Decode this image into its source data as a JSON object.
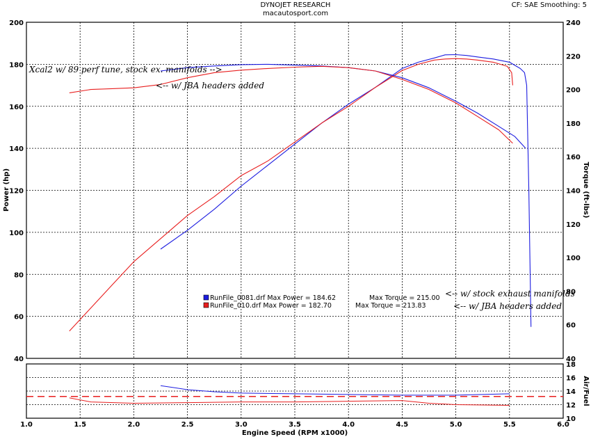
{
  "header": {
    "brand": "DYNOJET RESEARCH",
    "site": "macautosport.com",
    "cf_smoothing": "CF: SAE  Smoothing: 5"
  },
  "chart_data": [
    {
      "type": "line",
      "xlabel": "Engine Speed (RPM x1000)",
      "ylabel_left": "Power (hp)",
      "ylabel_right": "Torque (ft-lbs)",
      "xlim": [
        1.0,
        6.0
      ],
      "ylim_left": [
        40,
        200
      ],
      "ylim_right": [
        40,
        240
      ],
      "x_ticks": [
        "1.0",
        "1.5",
        "2.0",
        "2.5",
        "3.0",
        "3.5",
        "4.0",
        "4.5",
        "5.0",
        "5.5",
        "6.0"
      ],
      "y_ticks_left": [
        "40",
        "60",
        "80",
        "100",
        "120",
        "140",
        "160",
        "180",
        "200"
      ],
      "y_ticks_right": [
        "40",
        "60",
        "80",
        "100",
        "120",
        "140",
        "160",
        "180",
        "200",
        "220",
        "240"
      ],
      "grid": true,
      "series": [
        {
          "name": "RunFile_0081.drf Max Power = 184.62",
          "measure": "power",
          "color": "#1c1ce0",
          "x": [
            2.25,
            2.5,
            2.75,
            3.0,
            3.25,
            3.5,
            3.75,
            4.0,
            4.25,
            4.5,
            4.65,
            4.8,
            4.9,
            5.0,
            5.1,
            5.2,
            5.35,
            5.5,
            5.6,
            5.64,
            5.66,
            5.68,
            5.7
          ],
          "values": [
            92,
            101,
            111,
            122,
            132,
            142,
            152,
            161,
            169,
            178,
            181,
            183,
            184.5,
            184.6,
            184.2,
            183.5,
            182.5,
            181,
            178,
            176,
            170,
            120,
            55
          ]
        },
        {
          "name": "RunFile_010.drf Max Power = 182.70",
          "measure": "power",
          "color": "#e81e1e",
          "x": [
            1.4,
            1.6,
            1.8,
            2.0,
            2.25,
            2.5,
            2.75,
            3.0,
            3.25,
            3.5,
            3.75,
            4.0,
            4.25,
            4.5,
            4.65,
            4.8,
            4.9,
            5.0,
            5.1,
            5.2,
            5.35,
            5.48,
            5.52,
            5.53
          ],
          "values": [
            53,
            64,
            75,
            86,
            97,
            108,
            117,
            127,
            134,
            143,
            152,
            160,
            169,
            177,
            180,
            182,
            182.5,
            182.7,
            182.5,
            182,
            181,
            179,
            176,
            170
          ]
        },
        {
          "name": "Max Torque = 215.00",
          "measure": "torque",
          "color": "#1c1ce0",
          "x": [
            2.25,
            2.5,
            2.75,
            3.0,
            3.25,
            3.5,
            3.75,
            4.0,
            4.25,
            4.5,
            4.75,
            5.0,
            5.2,
            5.4,
            5.55,
            5.65
          ],
          "values": [
            211,
            213,
            214,
            214.8,
            215,
            214.5,
            214,
            213,
            211,
            207,
            201,
            193,
            186,
            178,
            172,
            165
          ]
        },
        {
          "name": "Max Torque = 213.83",
          "measure": "torque",
          "color": "#e81e1e",
          "x": [
            1.4,
            1.6,
            1.8,
            2.0,
            2.25,
            2.5,
            2.75,
            3.0,
            3.25,
            3.5,
            3.75,
            4.0,
            4.25,
            4.5,
            4.75,
            5.0,
            5.2,
            5.4,
            5.53
          ],
          "values": [
            198,
            200,
            200.5,
            201,
            203,
            207,
            210,
            211.5,
            212.5,
            213.3,
            213.8,
            213,
            211,
            206,
            200,
            192,
            184,
            176,
            168
          ]
        }
      ],
      "annotations": [
        "Xcal2 w/ 89 perf tune, stock ex. manifolds -->",
        "<-- w/ JBA headers added",
        "<-- w/ stock exhaust manifolds",
        "<-- w/ JBA headers added"
      ]
    },
    {
      "type": "line",
      "ylabel": "Air/Fuel",
      "xlim": [
        1.0,
        6.0
      ],
      "ylim": [
        10,
        18
      ],
      "y_ticks": [
        "10",
        "12",
        "14",
        "16",
        "18"
      ],
      "reference_line": 13.2,
      "reference_color": "#e81e1e",
      "series": [
        {
          "color": "#1c1ce0",
          "x": [
            2.25,
            2.5,
            2.75,
            3.0,
            3.5,
            4.0,
            4.5,
            5.0,
            5.5
          ],
          "values": [
            14.8,
            14.2,
            13.9,
            13.7,
            13.6,
            13.5,
            13.4,
            13.4,
            13.6
          ]
        },
        {
          "color": "#e81e1e",
          "x": [
            1.4,
            1.6,
            2.0,
            2.5,
            3.0,
            3.5,
            4.0,
            4.5,
            4.75,
            5.0,
            5.5
          ],
          "values": [
            13.0,
            12.4,
            12.2,
            12.3,
            12.4,
            12.4,
            12.5,
            12.6,
            12.2,
            12.0,
            11.9
          ]
        }
      ]
    }
  ]
}
